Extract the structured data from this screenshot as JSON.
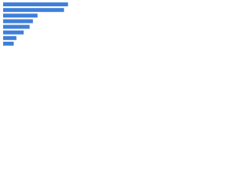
{
  "chart_data": {
    "type": "barh",
    "categories": [
      null,
      null,
      null,
      null,
      null,
      null,
      null,
      null
    ],
    "values": [
      98,
      92,
      52,
      45,
      40,
      31,
      20,
      16
    ],
    "color": "#3f7fd9",
    "xlim": [
      0,
      100
    ]
  }
}
